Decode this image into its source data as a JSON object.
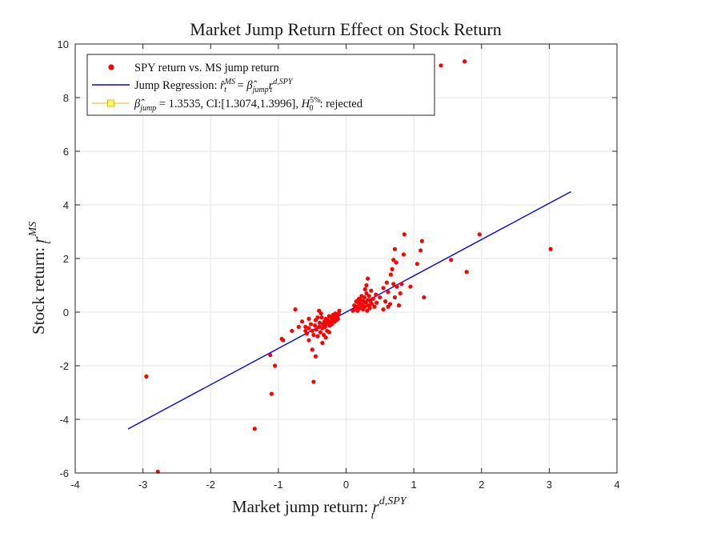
{
  "chart_data": {
    "type": "scatter",
    "title": "Market Jump Return Effect on Stock Return",
    "xlabel": "Market jump return: ",
    "xlabel_math": {
      "base": "r",
      "sub": "t",
      "sup": "d,SPY"
    },
    "ylabel": "Stock return: ",
    "ylabel_math": {
      "base": "r",
      "sub": "t",
      "sup": "MS"
    },
    "xlim": [
      -4,
      4
    ],
    "ylim": [
      -6,
      10
    ],
    "xticks": [
      -4,
      -3,
      -2,
      -1,
      0,
      1,
      2,
      3,
      4
    ],
    "yticks": [
      -6,
      -4,
      -2,
      0,
      2,
      4,
      6,
      8,
      10
    ],
    "xtick_labels": [
      "-4",
      "-3",
      "-2",
      "-1",
      "0",
      "1",
      "2",
      "3",
      "4"
    ],
    "ytick_labels": [
      "-6",
      "-4",
      "-2",
      "0",
      "2",
      "4",
      "6",
      "8",
      "10"
    ],
    "grid": true,
    "legend_position": "top-left",
    "legend": [
      {
        "label": "SPY return vs. MS jump return",
        "marker": "dot",
        "color": "#ff0000"
      },
      {
        "label": "Jump Regression: ",
        "math": "r̂ᵗᴹˢ = β̂ⱼᵤₘₚ rᵗᵈ·ˢᴾʸ",
        "marker": "line",
        "color": "#0000ff"
      },
      {
        "label": " = 1.3535, CI:[1.3074,1.3996], ",
        "prefix_math": "β̂jump",
        "suffix_math": "H0 5%",
        "suffix_text": ": rejected",
        "marker": "line-square",
        "color": "#edb120"
      }
    ],
    "legend_text": {
      "l1": "SPY return vs. MS jump return",
      "l2a": "Jump Regression: ",
      "l3a": " = 1.3535, CI:[1.3074,1.3996], ",
      "l3b": ": rejected"
    },
    "regression": {
      "slope": 1.3535,
      "intercept": 0.0,
      "x_range": [
        -3.22,
        3.32
      ],
      "color": "#0000ff"
    },
    "series": [
      {
        "name": "SPY return vs. MS jump return",
        "color": "#ff0000",
        "points": [
          [
            1.4,
            9.2
          ],
          [
            1.75,
            9.35
          ],
          [
            -2.95,
            -2.4
          ],
          [
            -2.78,
            -5.95
          ],
          [
            -1.35,
            -4.35
          ],
          [
            -1.1,
            -3.05
          ],
          [
            -1.05,
            -2.0
          ],
          [
            -1.12,
            -1.6
          ],
          [
            -0.93,
            -1.05
          ],
          [
            -0.8,
            -0.7
          ],
          [
            -0.7,
            -0.55
          ],
          [
            -0.6,
            -0.7
          ],
          [
            -0.55,
            -1.05
          ],
          [
            -0.5,
            -1.4
          ],
          [
            -0.45,
            -1.65
          ],
          [
            -0.48,
            -2.6
          ],
          [
            -0.95,
            -1.0
          ],
          [
            -0.75,
            0.1
          ],
          [
            -0.65,
            -0.35
          ],
          [
            -0.6,
            -0.55
          ],
          [
            -0.58,
            -0.8
          ],
          [
            -0.55,
            -0.6
          ],
          [
            -0.52,
            -0.45
          ],
          [
            -0.5,
            -0.7
          ],
          [
            -0.48,
            -0.85
          ],
          [
            -0.46,
            -0.5
          ],
          [
            -0.45,
            -0.3
          ],
          [
            -0.44,
            -0.65
          ],
          [
            -0.42,
            -0.9
          ],
          [
            -0.4,
            -0.55
          ],
          [
            -0.39,
            -0.4
          ],
          [
            -0.38,
            -0.75
          ],
          [
            -0.36,
            -0.2
          ],
          [
            -0.35,
            -0.6
          ],
          [
            -0.34,
            -0.45
          ],
          [
            -0.33,
            -0.85
          ],
          [
            -0.32,
            -0.35
          ],
          [
            -0.31,
            -0.55
          ],
          [
            -0.3,
            -0.25
          ],
          [
            -0.29,
            -0.45
          ],
          [
            -0.28,
            -0.7
          ],
          [
            -0.27,
            -0.3
          ],
          [
            -0.26,
            -0.4
          ],
          [
            -0.25,
            -0.15
          ],
          [
            -0.24,
            -0.5
          ],
          [
            -0.23,
            -0.35
          ],
          [
            -0.22,
            -0.2
          ],
          [
            -0.21,
            -0.45
          ],
          [
            -0.2,
            -0.3
          ],
          [
            -0.19,
            -0.1
          ],
          [
            -0.18,
            -0.25
          ],
          [
            -0.17,
            -0.35
          ],
          [
            -0.16,
            -0.05
          ],
          [
            -0.15,
            -0.2
          ],
          [
            -0.14,
            -0.3
          ],
          [
            -0.13,
            -0.15
          ],
          [
            -0.12,
            -0.25
          ],
          [
            -0.11,
            -0.05
          ],
          [
            -0.1,
            0.05
          ],
          [
            -0.42,
            -0.2
          ],
          [
            -0.4,
            0.05
          ],
          [
            -0.37,
            -0.05
          ],
          [
            -0.55,
            -0.25
          ],
          [
            -0.35,
            -1.15
          ],
          [
            -0.3,
            -0.95
          ],
          [
            -0.25,
            -0.75
          ],
          [
            0.1,
            0.05
          ],
          [
            0.12,
            0.25
          ],
          [
            0.14,
            0.1
          ],
          [
            0.15,
            0.4
          ],
          [
            0.16,
            0.2
          ],
          [
            0.17,
            0.05
          ],
          [
            0.18,
            0.35
          ],
          [
            0.19,
            0.5
          ],
          [
            0.2,
            0.15
          ],
          [
            0.21,
            0.3
          ],
          [
            0.22,
            0.45
          ],
          [
            0.23,
            0.6
          ],
          [
            0.24,
            0.25
          ],
          [
            0.25,
            0.1
          ],
          [
            0.26,
            0.4
          ],
          [
            0.27,
            0.55
          ],
          [
            0.28,
            0.2
          ],
          [
            0.29,
            0.35
          ],
          [
            0.3,
            0.7
          ],
          [
            0.31,
            0.05
          ],
          [
            0.32,
            0.45
          ],
          [
            0.33,
            0.25
          ],
          [
            0.34,
            0.6
          ],
          [
            0.35,
            0.15
          ],
          [
            0.36,
            0.4
          ],
          [
            0.37,
            0.8
          ],
          [
            0.38,
            0.3
          ],
          [
            0.4,
            0.5
          ],
          [
            0.42,
            0.2
          ],
          [
            0.44,
            0.65
          ],
          [
            0.3,
            1.0
          ],
          [
            0.32,
            1.25
          ],
          [
            0.28,
            0.85
          ],
          [
            0.45,
            0.35
          ],
          [
            0.5,
            0.55
          ],
          [
            0.55,
            0.9
          ],
          [
            0.58,
            0.4
          ],
          [
            0.6,
            1.1
          ],
          [
            0.62,
            0.75
          ],
          [
            0.65,
            0.3
          ],
          [
            0.66,
            1.4
          ],
          [
            0.7,
            1.05
          ],
          [
            0.72,
            0.55
          ],
          [
            0.75,
            0.95
          ],
          [
            0.78,
            0.25
          ],
          [
            0.8,
            0.7
          ],
          [
            0.82,
            1.05
          ],
          [
            0.85,
            2.15
          ],
          [
            0.86,
            2.9
          ],
          [
            0.7,
            1.95
          ],
          [
            0.72,
            2.35
          ],
          [
            0.74,
            1.85
          ],
          [
            0.68,
            1.6
          ],
          [
            0.95,
            0.95
          ],
          [
            1.1,
            2.3
          ],
          [
            1.12,
            2.65
          ],
          [
            1.15,
            0.55
          ],
          [
            1.05,
            1.8
          ],
          [
            1.55,
            1.95
          ],
          [
            1.78,
            1.5
          ],
          [
            1.97,
            2.9
          ],
          [
            3.02,
            2.35
          ],
          [
            0.55,
            0.1
          ],
          [
            0.62,
            0.2
          ]
        ]
      }
    ]
  }
}
